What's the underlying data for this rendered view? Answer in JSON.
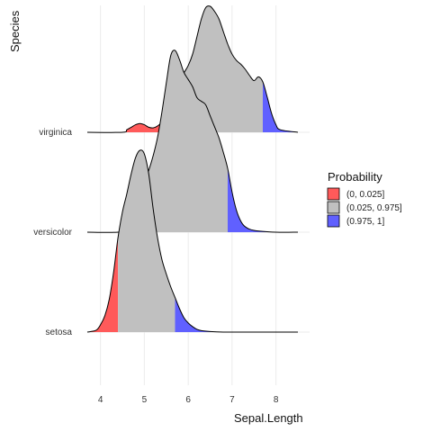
{
  "chart_data": {
    "type": "ridgeline-density",
    "title": "",
    "xlabel": "Sepal.Length",
    "ylabel": "Species",
    "xlim": [
      3.7,
      8.5
    ],
    "x_ticks": [
      4,
      5,
      6,
      7,
      8
    ],
    "grid": true,
    "legend": {
      "title": "Probability",
      "placement": "right",
      "items": [
        {
          "label": "(0, 0.025]",
          "color": "#ff5a5a"
        },
        {
          "label": "(0.025, 0.975]",
          "color": "#c0c0c0"
        },
        {
          "label": "(0.975, 1]",
          "color": "#6060ff"
        }
      ]
    },
    "series": [
      {
        "name": "setosa",
        "lower_quantile": 4.4,
        "upper_quantile": 5.7,
        "x": [
          3.7,
          3.9,
          4.0,
          4.1,
          4.2,
          4.3,
          4.4,
          4.5,
          4.6,
          4.7,
          4.8,
          4.9,
          5.0,
          5.1,
          5.2,
          5.3,
          5.4,
          5.5,
          5.6,
          5.7,
          5.8,
          5.9,
          6.0,
          6.1,
          6.2,
          6.3,
          6.5,
          6.8,
          7.2,
          8.5
        ],
        "density": [
          0.0,
          0.01,
          0.04,
          0.09,
          0.18,
          0.33,
          0.52,
          0.66,
          0.76,
          0.87,
          0.96,
          1.0,
          0.98,
          0.87,
          0.68,
          0.52,
          0.4,
          0.32,
          0.25,
          0.19,
          0.13,
          0.08,
          0.05,
          0.03,
          0.015,
          0.008,
          0.003,
          0.0,
          0.0,
          0.0
        ]
      },
      {
        "name": "versicolor",
        "lower_quantile": 5.0,
        "upper_quantile": 6.9,
        "x": [
          3.7,
          4.4,
          4.6,
          4.7,
          4.8,
          4.9,
          5.0,
          5.1,
          5.2,
          5.3,
          5.4,
          5.5,
          5.6,
          5.7,
          5.8,
          5.9,
          6.0,
          6.1,
          6.2,
          6.3,
          6.4,
          6.5,
          6.6,
          6.7,
          6.8,
          6.9,
          7.0,
          7.1,
          7.2,
          7.3,
          7.5,
          8.0,
          8.5
        ],
        "density": [
          0.0,
          0.0,
          0.02,
          0.06,
          0.12,
          0.2,
          0.28,
          0.34,
          0.42,
          0.52,
          0.66,
          0.82,
          0.97,
          1.0,
          0.95,
          0.88,
          0.84,
          0.8,
          0.74,
          0.72,
          0.7,
          0.64,
          0.58,
          0.52,
          0.44,
          0.35,
          0.22,
          0.12,
          0.06,
          0.03,
          0.01,
          0.0,
          0.0
        ]
      },
      {
        "name": "virginica",
        "lower_quantile": 5.6,
        "upper_quantile": 7.7,
        "x": [
          3.7,
          4.5,
          4.6,
          4.7,
          4.8,
          4.9,
          5.0,
          5.1,
          5.2,
          5.3,
          5.4,
          5.5,
          5.6,
          5.7,
          5.8,
          5.9,
          6.0,
          6.1,
          6.2,
          6.3,
          6.4,
          6.5,
          6.6,
          6.7,
          6.8,
          6.9,
          7.0,
          7.1,
          7.2,
          7.3,
          7.4,
          7.5,
          7.6,
          7.7,
          7.8,
          7.9,
          8.0,
          8.1,
          8.5
        ],
        "density": [
          0.0,
          0.0,
          0.02,
          0.04,
          0.06,
          0.07,
          0.06,
          0.04,
          0.035,
          0.05,
          0.08,
          0.12,
          0.18,
          0.29,
          0.4,
          0.47,
          0.53,
          0.62,
          0.76,
          0.9,
          0.99,
          1.0,
          0.96,
          0.9,
          0.8,
          0.7,
          0.62,
          0.57,
          0.54,
          0.5,
          0.45,
          0.41,
          0.44,
          0.4,
          0.28,
          0.15,
          0.06,
          0.02,
          0.0
        ]
      }
    ]
  }
}
